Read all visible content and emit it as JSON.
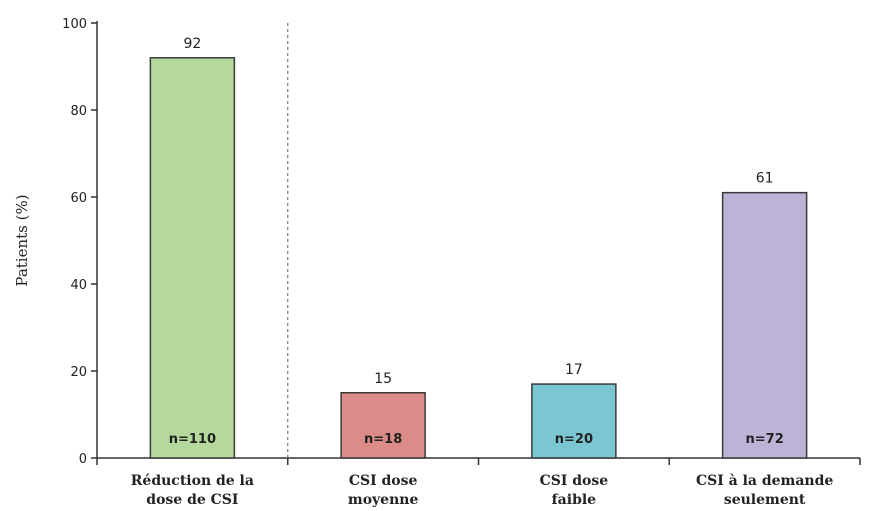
{
  "chart_data": {
    "type": "bar",
    "ylabel": "Patients (%)",
    "xlabel": "",
    "ylim": [
      0,
      100
    ],
    "yticks": [
      0,
      20,
      40,
      60,
      80,
      100
    ],
    "categories": [
      [
        "Réduction de la",
        "dose de CSI"
      ],
      [
        "CSI dose",
        "moyenne"
      ],
      [
        "CSI dose",
        "faible"
      ],
      [
        "CSI à la demande",
        "seulement"
      ]
    ],
    "values": [
      92,
      15,
      17,
      61
    ],
    "n_labels": [
      "n=110",
      "n=18",
      "n=20",
      "n=72"
    ],
    "colors": [
      "#b5d89c",
      "#db8c88",
      "#7ac7d3",
      "#bcb3d6"
    ],
    "separator_after_category": 0,
    "grid": false
  }
}
